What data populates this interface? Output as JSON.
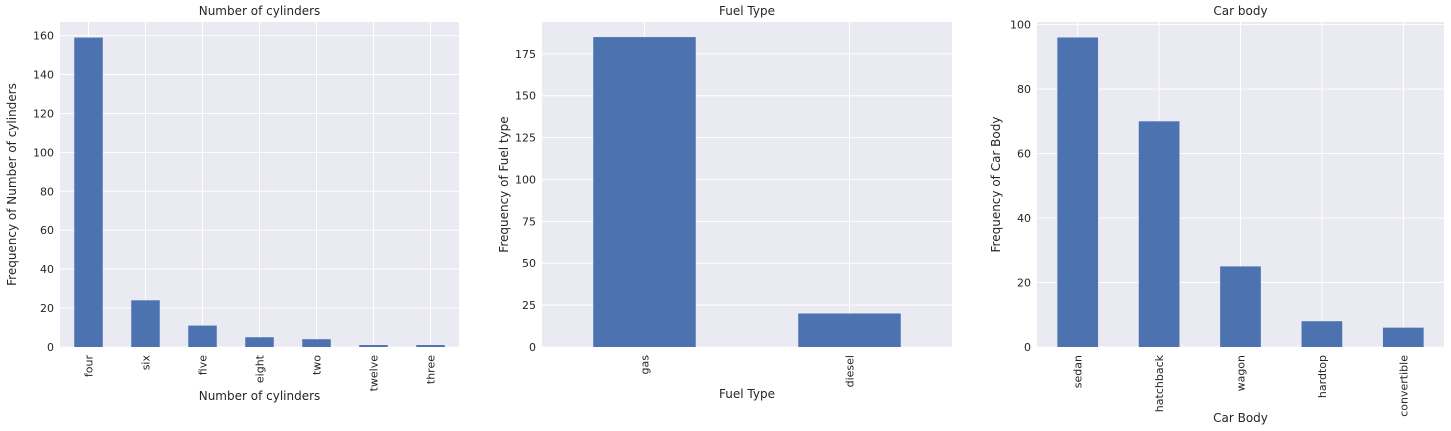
{
  "colors": {
    "bar": "#4c72b0",
    "plot_background": "#eaeaf2",
    "grid": "#ffffff",
    "text": "#262626"
  },
  "chart_data": [
    {
      "type": "bar",
      "title": "Number of cylinders",
      "xlabel": "Number of cylinders",
      "ylabel": "Frequency of Number of cylinders",
      "categories": [
        "four",
        "six",
        "five",
        "eight",
        "two",
        "twelve",
        "three"
      ],
      "values": [
        159,
        24,
        11,
        5,
        4,
        1,
        1
      ],
      "ylim": [
        0,
        167
      ],
      "yticks": [
        0,
        20,
        40,
        60,
        80,
        100,
        120,
        140,
        160
      ],
      "grid": true,
      "tick_rotation": "vertical"
    },
    {
      "type": "bar",
      "title": "Fuel Type",
      "xlabel": "Fuel Type",
      "ylabel": "Frequency of Fuel type",
      "categories": [
        "gas",
        "diesel"
      ],
      "values": [
        185,
        20
      ],
      "ylim": [
        0,
        194
      ],
      "yticks": [
        0,
        25,
        50,
        75,
        100,
        125,
        150,
        175
      ],
      "grid": true,
      "tick_rotation": "vertical"
    },
    {
      "type": "bar",
      "title": "Car body",
      "xlabel": "Car Body",
      "ylabel": "Frequency of Car Body",
      "categories": [
        "sedan",
        "hatchback",
        "wagon",
        "hardtop",
        "convertible"
      ],
      "values": [
        96,
        70,
        25,
        8,
        6
      ],
      "ylim": [
        0,
        100.8
      ],
      "yticks": [
        0,
        20,
        40,
        60,
        80,
        100
      ],
      "grid": true,
      "tick_rotation": "vertical"
    }
  ]
}
